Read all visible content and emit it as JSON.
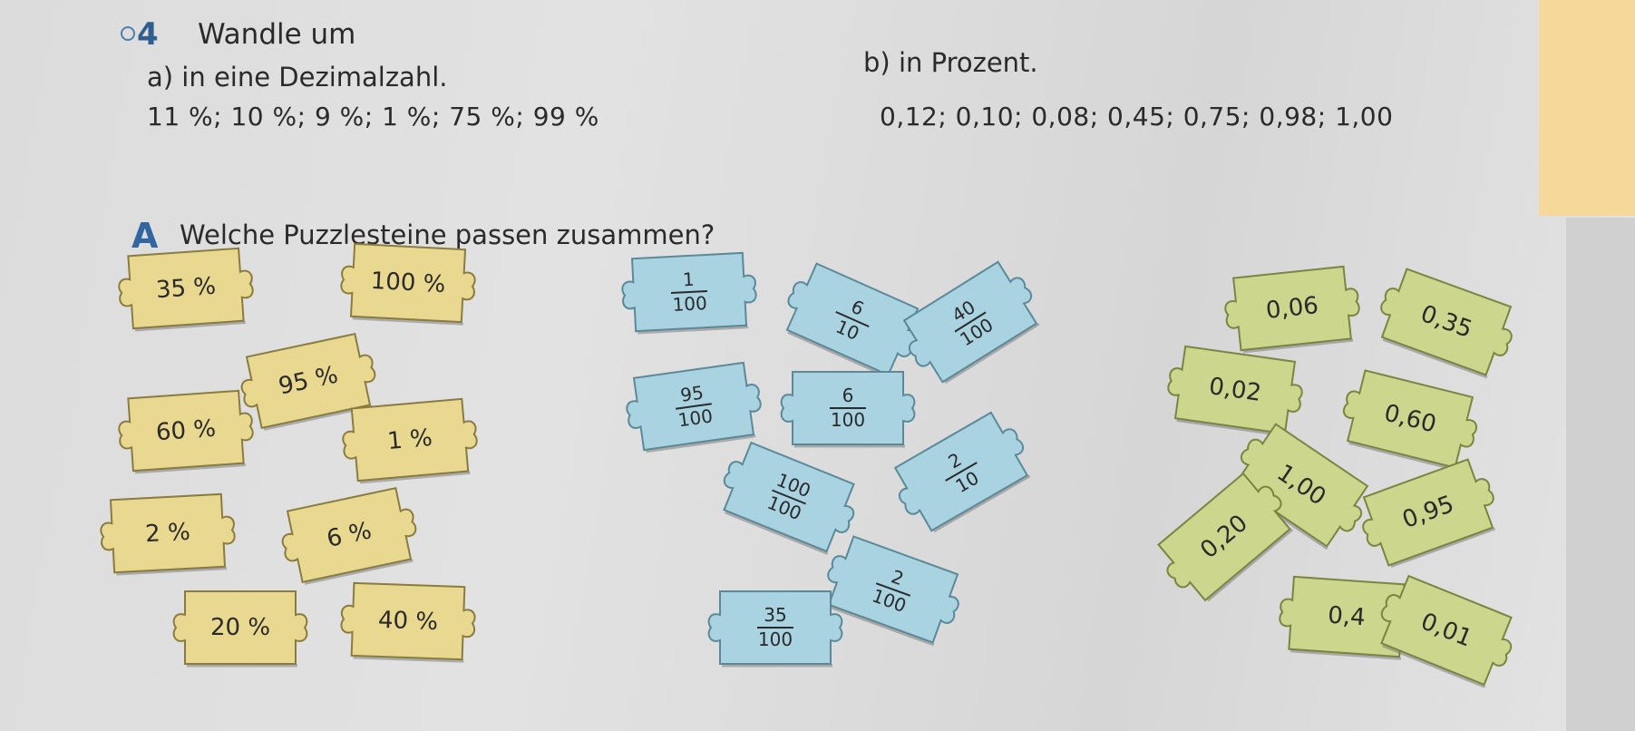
{
  "task4": {
    "number": "4",
    "title": "Wandle um",
    "part_a": {
      "label": "a) in eine Dezimalzahl.",
      "values": "11 %;  10 %;  9 %;  1 %;  75 %;  99 %"
    },
    "part_b": {
      "label": "b) in Prozent.",
      "values": "0,12;  0,10;  0,08;  0,45;  0,75;  0,98;  1,00"
    }
  },
  "taskA": {
    "letter": "A",
    "title": "Welche Puzzlesteine passen zusammen?"
  },
  "colors": {
    "yellow": "#e9d88f",
    "blue": "#a9d3e1",
    "green": "#ccd68d",
    "accent": "#2f5f8f"
  },
  "yellow_pieces": [
    "35 %",
    "100 %",
    "95 %",
    "60 %",
    "1 %",
    "2 %",
    "6 %",
    "20 %",
    "40 %"
  ],
  "blue_pieces": [
    {
      "num": "1",
      "den": "100"
    },
    {
      "num": "6",
      "den": "10"
    },
    {
      "num": "40",
      "den": "100"
    },
    {
      "num": "95",
      "den": "100"
    },
    {
      "num": "6",
      "den": "100"
    },
    {
      "num": "2",
      "den": "10"
    },
    {
      "num": "100",
      "den": "100"
    },
    {
      "num": "2",
      "den": "100"
    },
    {
      "num": "35",
      "den": "100"
    }
  ],
  "green_pieces": [
    "0,06",
    "0,35",
    "0,02",
    "0,60",
    "1,00",
    "0,95",
    "0,20",
    "0,4",
    "0,01"
  ]
}
